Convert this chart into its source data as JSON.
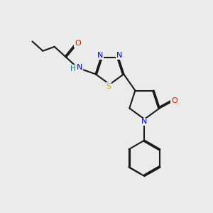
{
  "bg_color": "#ebebeb",
  "bond_color": "#1a1a1a",
  "atom_colors": {
    "O": "#ff0000",
    "N": "#0000ff",
    "S": "#ccaa00",
    "H": "#008080",
    "C": "#1a1a1a"
  },
  "lw": 1.5
}
